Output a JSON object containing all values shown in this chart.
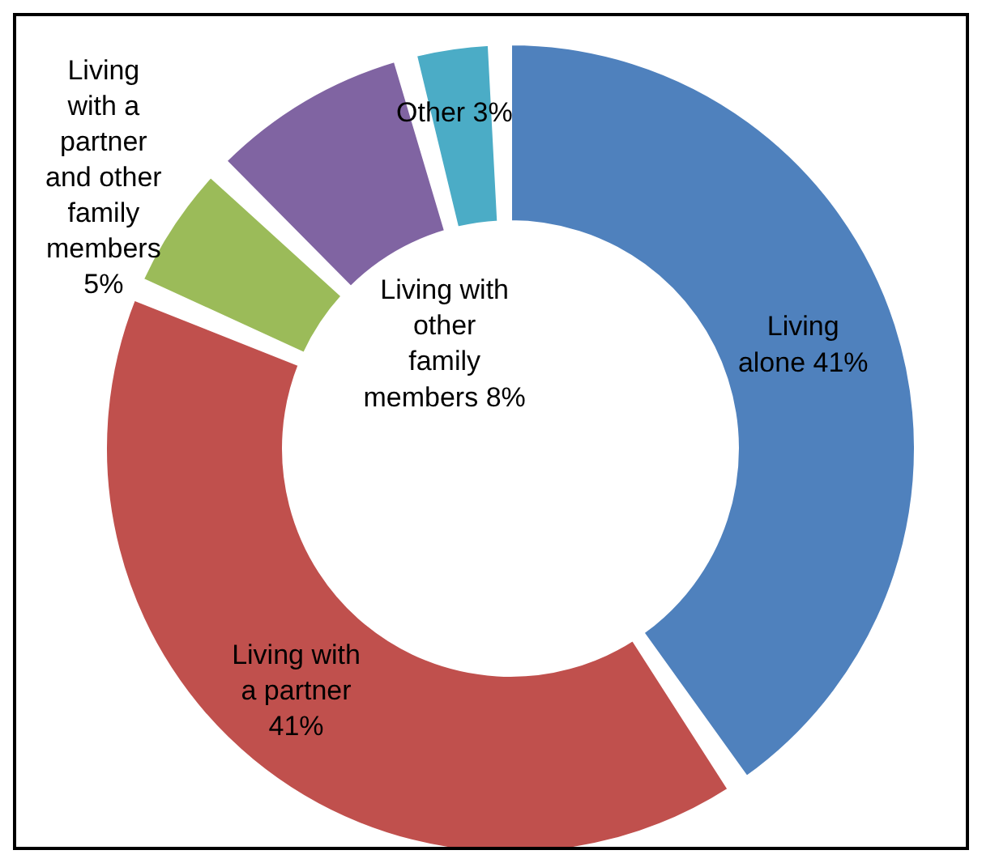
{
  "chart_data": {
    "type": "donut",
    "categories": [
      "Living alone",
      "Living with a partner",
      "Living with a partner and other family members",
      "Living with other family members",
      "Other"
    ],
    "values": [
      41,
      41,
      5,
      8,
      3
    ],
    "value_labels": [
      "41%",
      "41%",
      "5%",
      "8%",
      "3%"
    ],
    "colors": [
      "#4f81bd",
      "#c0504d",
      "#9bbb59",
      "#8064a2",
      "#4bacc6"
    ],
    "legend": false
  }
}
